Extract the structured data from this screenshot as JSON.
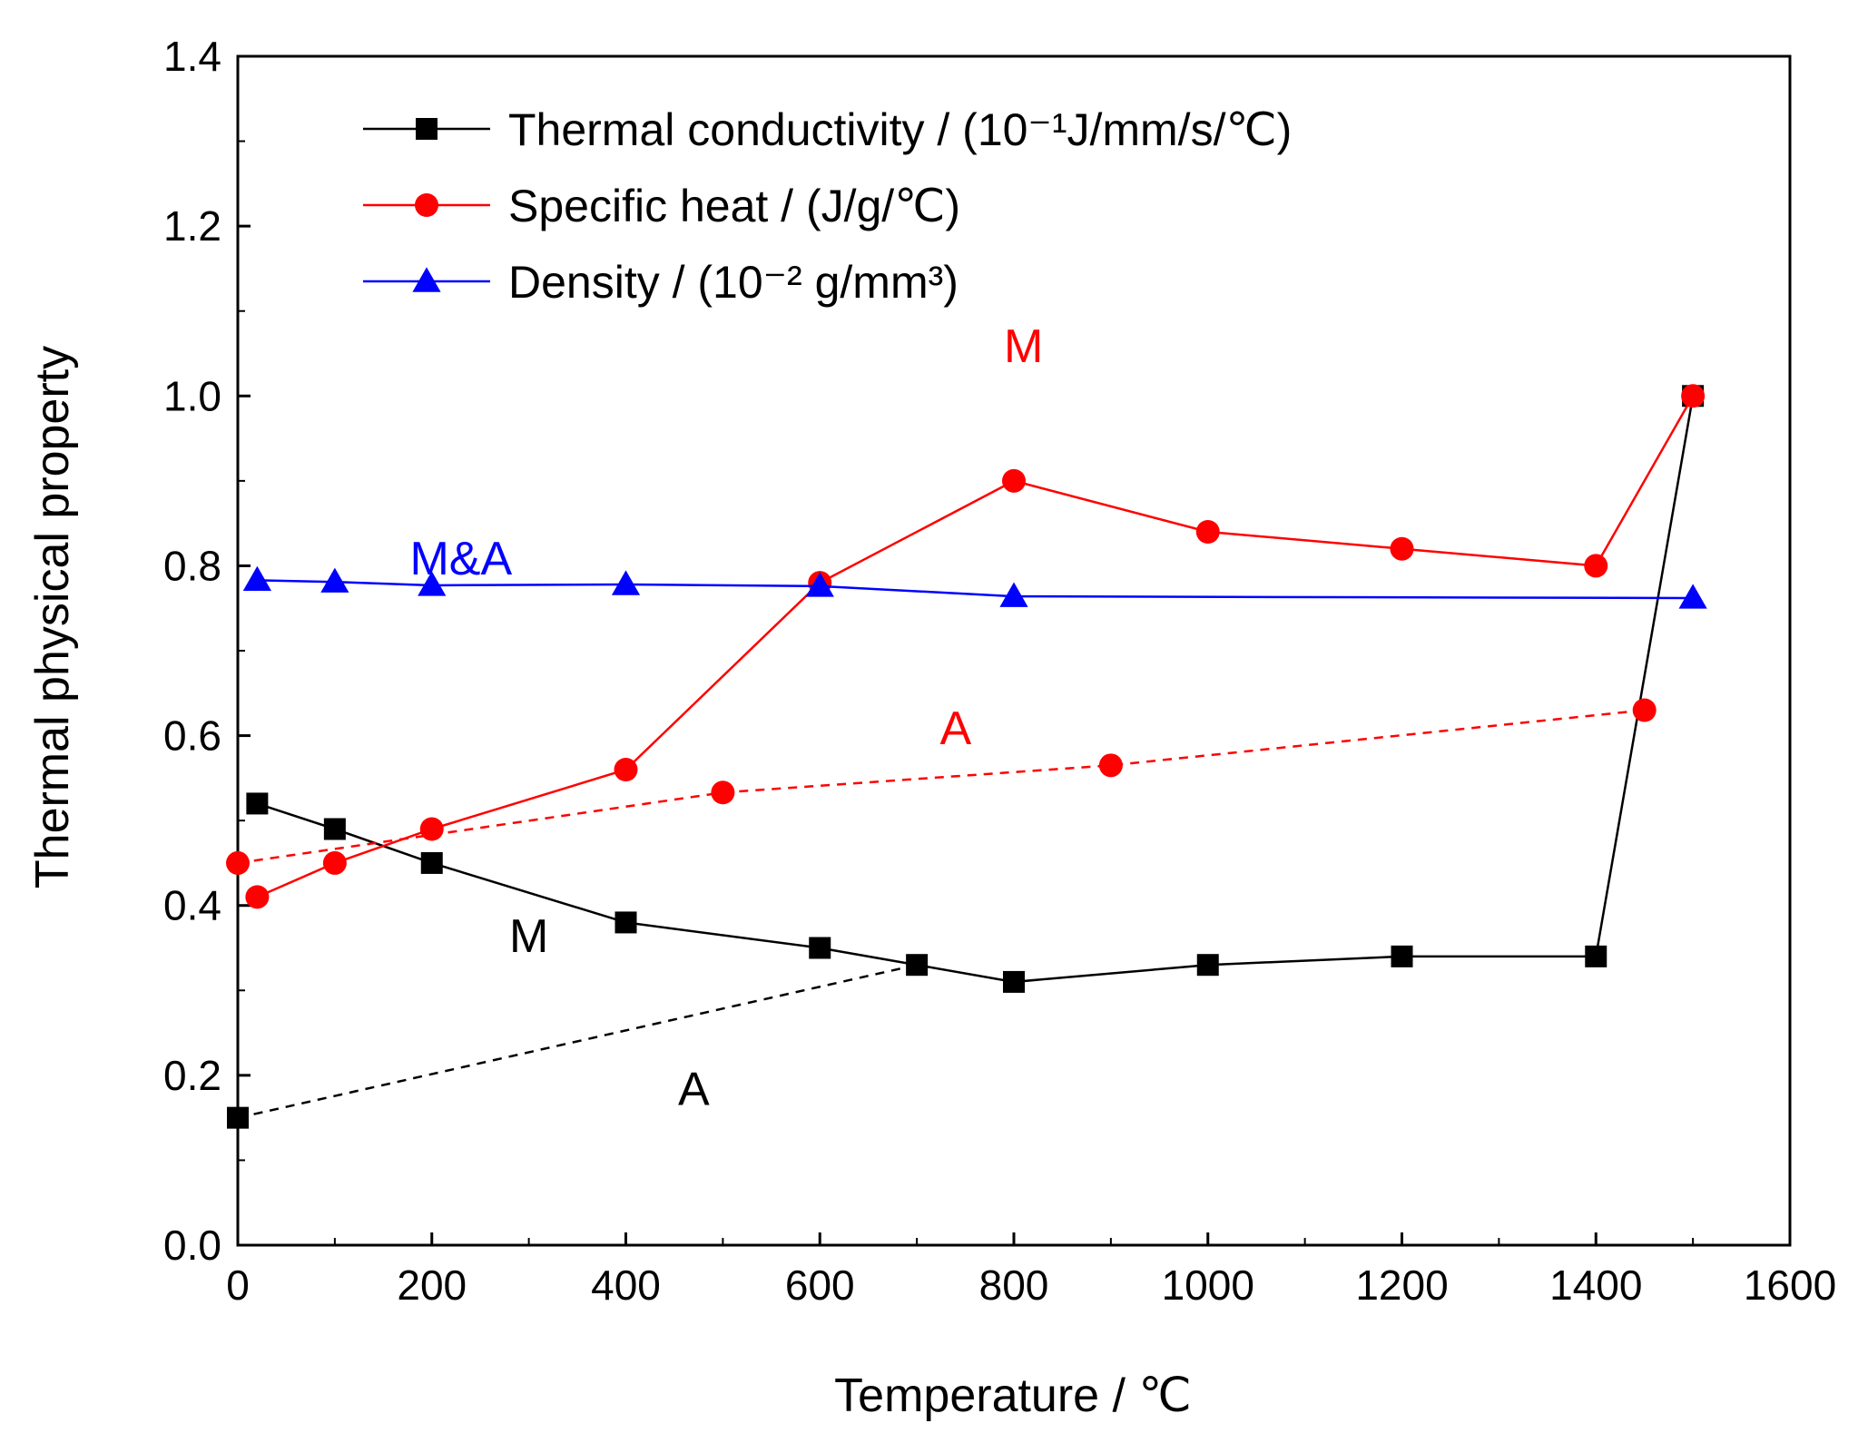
{
  "chart_data": {
    "type": "line",
    "title": "",
    "xlabel": "Temperature / ℃",
    "ylabel": "Thermal physical property",
    "xlim": [
      0,
      1600
    ],
    "ylim": [
      0,
      1.4
    ],
    "xticks": [
      0,
      200,
      400,
      600,
      800,
      1000,
      1200,
      1400,
      1600
    ],
    "yticks": [
      0.0,
      0.2,
      0.4,
      0.6,
      0.8,
      1.0,
      1.2,
      1.4
    ],
    "xtick_labels": [
      "0",
      "200",
      "400",
      "600",
      "800",
      "1000",
      "1200",
      "1400",
      "1600"
    ],
    "ytick_labels": [
      "0.0",
      "0.2",
      "0.4",
      "0.6",
      "0.8",
      "1.0",
      "1.2",
      "1.4"
    ],
    "grid": false,
    "legend_position": "top",
    "series": [
      {
        "name": "Thermal conductivity / (10⁻¹J/mm/s/℃)",
        "legend": true,
        "color": "#000000",
        "marker": "square",
        "dash": false,
        "x": [
          20,
          100,
          200,
          400,
          600,
          700,
          800,
          1000,
          1200,
          1400,
          1500
        ],
        "y": [
          0.52,
          0.49,
          0.45,
          0.38,
          0.35,
          0.33,
          0.31,
          0.33,
          0.34,
          0.34,
          1.0
        ]
      },
      {
        "name": "Thermal conductivity (A)",
        "legend": false,
        "color": "#000000",
        "marker": "square",
        "dash": true,
        "x": [
          0,
          700
        ],
        "y": [
          0.15,
          0.33
        ],
        "marker_indices": [
          0
        ]
      },
      {
        "name": "Specific heat / (J/g/℃)",
        "legend": true,
        "color": "#ff0000",
        "marker": "circle",
        "dash": false,
        "x": [
          20,
          100,
          200,
          400,
          600,
          800,
          1000,
          1200,
          1400,
          1500
        ],
        "y": [
          0.41,
          0.45,
          0.49,
          0.56,
          0.78,
          0.9,
          0.84,
          0.82,
          0.8,
          1.0
        ]
      },
      {
        "name": "Specific heat (A)",
        "legend": false,
        "color": "#ff0000",
        "marker": "circle",
        "dash": true,
        "x": [
          0,
          500,
          900,
          1450
        ],
        "y": [
          0.45,
          0.533,
          0.565,
          0.63
        ],
        "marker_indices": [
          0,
          1,
          2,
          3
        ]
      },
      {
        "name": "Density / (10⁻² g/mm³)",
        "legend": true,
        "color": "#0000ff",
        "marker": "triangle",
        "dash": false,
        "x": [
          20,
          100,
          200,
          400,
          600,
          800,
          1500
        ],
        "y": [
          0.783,
          0.781,
          0.777,
          0.778,
          0.776,
          0.764,
          0.762
        ]
      }
    ],
    "annotations": [
      {
        "text": "M",
        "x": 810,
        "y": 1.04,
        "color": "#ff0000"
      },
      {
        "text": "M&A",
        "x": 230,
        "y": 0.79,
        "color": "#0000ff"
      },
      {
        "text": "A",
        "x": 740,
        "y": 0.59,
        "color": "#ff0000"
      },
      {
        "text": "M",
        "x": 300,
        "y": 0.345,
        "color": "#000000"
      },
      {
        "text": "A",
        "x": 470,
        "y": 0.165,
        "color": "#000000"
      }
    ]
  }
}
